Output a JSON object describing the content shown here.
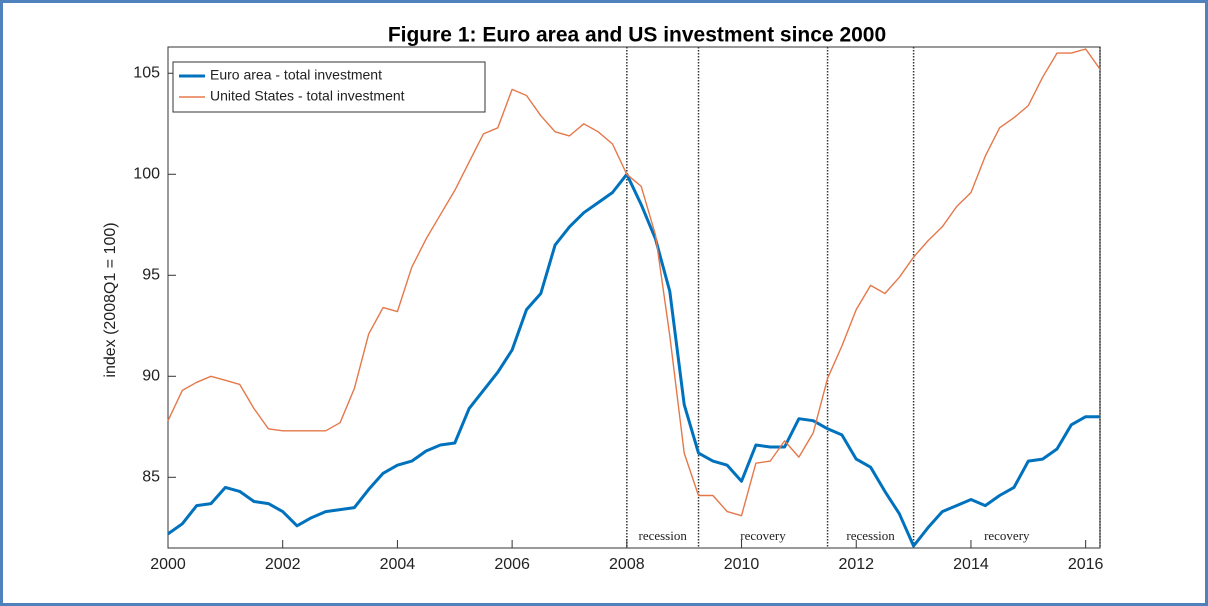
{
  "chart_data": {
    "type": "line",
    "title": "Figure 1: Euro area and US investment since 2000",
    "ylabel": "index (2008Q1 = 100)",
    "x": [
      2000,
      2000.25,
      2000.5,
      2000.75,
      2001,
      2001.25,
      2001.5,
      2001.75,
      2002,
      2002.25,
      2002.5,
      2002.75,
      2003,
      2003.25,
      2003.5,
      2003.75,
      2004,
      2004.25,
      2004.5,
      2004.75,
      2005,
      2005.25,
      2005.5,
      2005.75,
      2006,
      2006.25,
      2006.5,
      2006.75,
      2007,
      2007.25,
      2007.5,
      2007.75,
      2008,
      2008.25,
      2008.5,
      2008.75,
      2009,
      2009.25,
      2009.5,
      2009.75,
      2010,
      2010.25,
      2010.5,
      2010.75,
      2011,
      2011.25,
      2011.5,
      2011.75,
      2012,
      2012.25,
      2012.5,
      2012.75,
      2013,
      2013.25,
      2013.5,
      2013.75,
      2014,
      2014.25,
      2014.5,
      2014.75,
      2015,
      2015.25,
      2015.5,
      2015.75,
      2016,
      2016.25
    ],
    "series": [
      {
        "name": "Euro area - total investment",
        "color": "#0072bd",
        "width": 3,
        "values": [
          82.2,
          82.7,
          83.6,
          83.7,
          84.5,
          84.3,
          83.8,
          83.7,
          83.3,
          82.6,
          83.0,
          83.3,
          83.4,
          83.5,
          84.4,
          85.2,
          85.6,
          85.8,
          86.3,
          86.6,
          86.7,
          88.4,
          89.3,
          90.2,
          91.3,
          93.3,
          94.1,
          96.5,
          97.4,
          98.1,
          98.6,
          99.1,
          100.0,
          98.5,
          96.8,
          94.2,
          88.6,
          86.2,
          85.8,
          85.6,
          84.8,
          86.6,
          86.5,
          86.5,
          87.9,
          87.8,
          87.4,
          87.1,
          85.9,
          85.5,
          84.3,
          83.2,
          81.6,
          82.5,
          83.3,
          83.6,
          83.9,
          83.6,
          84.1,
          84.5,
          85.8,
          85.9,
          86.4,
          87.6,
          88.0,
          88.0
        ]
      },
      {
        "name": "United States - total investment",
        "color": "#e5784a",
        "width": 1.4,
        "values": [
          87.8,
          89.3,
          89.7,
          90.0,
          89.8,
          89.6,
          88.4,
          87.4,
          87.3,
          87.3,
          87.3,
          87.3,
          87.7,
          89.4,
          92.1,
          93.4,
          93.2,
          95.4,
          96.8,
          98.0,
          99.2,
          100.6,
          102.0,
          102.3,
          104.2,
          103.9,
          102.9,
          102.1,
          101.9,
          102.5,
          102.1,
          101.5,
          100.0,
          99.4,
          97.0,
          92.0,
          86.2,
          84.1,
          84.1,
          83.3,
          83.1,
          85.7,
          85.8,
          86.8,
          86.0,
          87.2,
          89.9,
          91.5,
          93.3,
          94.5,
          94.1,
          94.9,
          95.9,
          96.7,
          97.4,
          98.4,
          99.1,
          100.9,
          102.3,
          102.8,
          103.4,
          104.8,
          106.0,
          106.0,
          106.2,
          105.2
        ]
      }
    ],
    "xlim": [
      2000,
      2016.25
    ],
    "xticks": [
      2000,
      2002,
      2004,
      2006,
      2008,
      2010,
      2012,
      2014,
      2016
    ],
    "ylim": [
      81.5,
      106.3
    ],
    "yticks": [
      85,
      90,
      95,
      100,
      105
    ],
    "period_boundaries": [
      2008,
      2009.25,
      2011.5,
      2013,
      2016.25
    ],
    "period_labels": [
      "recession",
      "recovery",
      "recession",
      "recovery"
    ],
    "legend": "upper left"
  }
}
